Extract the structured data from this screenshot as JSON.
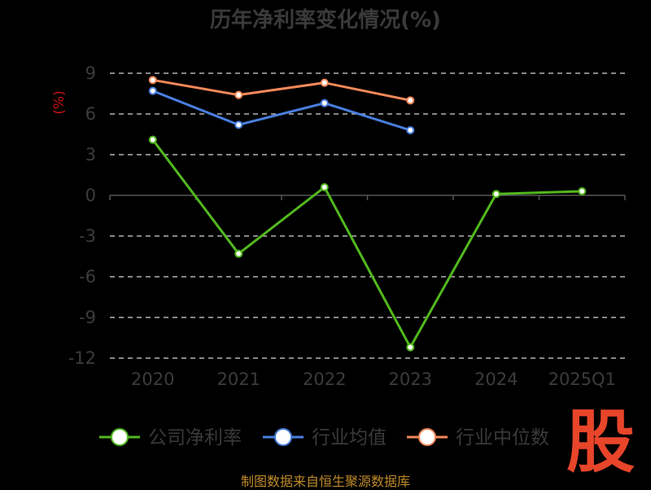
{
  "chart_data": {
    "type": "line",
    "title": "历年净利率变化情况(%)",
    "unit_label": "(%)",
    "categories": [
      "2020",
      "2021",
      "2022",
      "2023",
      "2024",
      "2025Q1"
    ],
    "ylim": [
      -12,
      9
    ],
    "yticks": [
      9,
      6,
      3,
      0,
      -3,
      -6,
      -9,
      -12
    ],
    "grid": true,
    "legend_position": "bottom",
    "series": [
      {
        "name": "公司净利率",
        "color": "#52b81e",
        "values": [
          4.1,
          -4.3,
          0.6,
          -11.2,
          0.1,
          0.3
        ]
      },
      {
        "name": "行业均值",
        "color": "#4a7fe0",
        "values": [
          7.7,
          5.2,
          6.8,
          4.8,
          null,
          null
        ]
      },
      {
        "name": "行业中位数",
        "color": "#f5885a",
        "values": [
          8.5,
          7.4,
          8.3,
          7.0,
          null,
          null
        ]
      }
    ]
  },
  "footer": {
    "text": "制图数据来自恒生聚源数据库"
  },
  "logo": {
    "text": "股"
  }
}
